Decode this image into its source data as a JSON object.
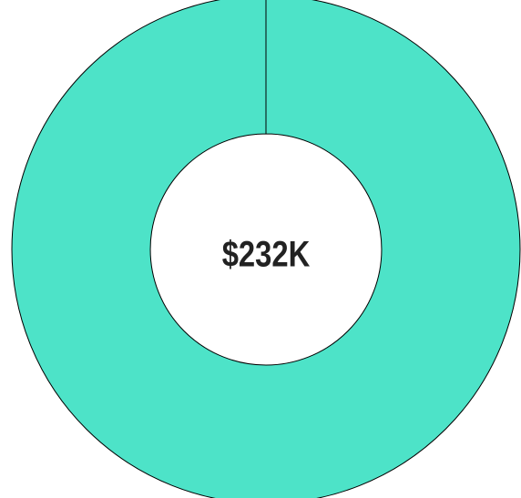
{
  "chart_data": {
    "type": "donut",
    "values": [
      232000
    ],
    "value_labels": [
      "$232K"
    ],
    "colors": [
      "#4de3c8"
    ]
  }
}
